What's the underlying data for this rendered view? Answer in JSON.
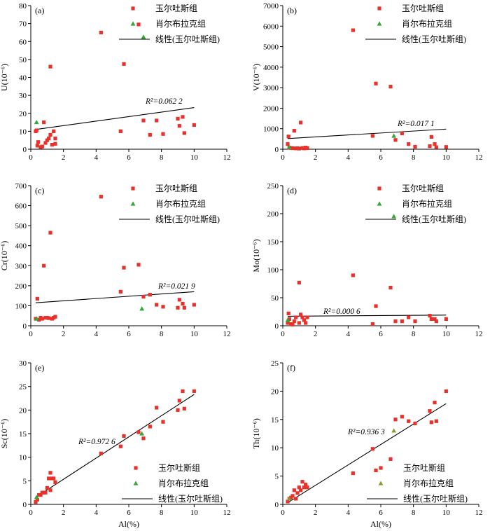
{
  "figure": {
    "legend_labels": [
      "玉尔吐斯组",
      "肖尔布拉克组",
      "线性(玉尔吐斯组)"
    ],
    "colors": {
      "series1": "#e8312a",
      "series2": "#33a833",
      "series2_f": "#8a9a2c",
      "trendline": "#000000",
      "axis": "#000000"
    }
  },
  "chart_data": [
    {
      "id": "a",
      "label": "(a)",
      "type": "scatter",
      "ylabel": "U(10⁻⁶)",
      "xlabel": "",
      "xlim": [
        0,
        12
      ],
      "ylim": [
        0,
        80
      ],
      "xticks": [
        0,
        2,
        4,
        6,
        8,
        10,
        12
      ],
      "yticks": [
        0,
        10,
        20,
        30,
        40,
        50,
        60,
        70,
        80
      ],
      "r2_text": "R²=0.062 2",
      "trendline": {
        "x": [
          0.3,
          10.0
        ],
        "y": [
          11.0,
          23.2
        ]
      },
      "series": [
        {
          "name": "玉尔吐斯组",
          "marker": "square",
          "points": [
            [
              0.3,
              10
            ],
            [
              0.35,
              10.5
            ],
            [
              0.4,
              2
            ],
            [
              0.45,
              4
            ],
            [
              0.6,
              1.2
            ],
            [
              0.7,
              1.5
            ],
            [
              0.8,
              15
            ],
            [
              0.9,
              3.5
            ],
            [
              1.0,
              5
            ],
            [
              1.1,
              6
            ],
            [
              1.2,
              46
            ],
            [
              1.2,
              8
            ],
            [
              1.3,
              2.5
            ],
            [
              1.4,
              10
            ],
            [
              1.5,
              3
            ],
            [
              1.5,
              6
            ],
            [
              4.3,
              65
            ],
            [
              5.5,
              10
            ],
            [
              5.7,
              47.5
            ],
            [
              6.6,
              69.5
            ],
            [
              6.9,
              16
            ],
            [
              7.3,
              8
            ],
            [
              7.7,
              16
            ],
            [
              8.1,
              8.5
            ],
            [
              9.0,
              17
            ],
            [
              9.1,
              13
            ],
            [
              9.3,
              18
            ],
            [
              9.4,
              9
            ],
            [
              10.0,
              13.5
            ]
          ]
        },
        {
          "name": "肖尔布拉克组",
          "marker": "triangle",
          "points": [
            [
              0.35,
              15
            ],
            [
              6.9,
              62.5
            ]
          ]
        }
      ]
    },
    {
      "id": "b",
      "label": "(b)",
      "type": "scatter",
      "ylabel": "V(10⁻⁶)",
      "xlabel": "",
      "xlim": [
        0,
        12
      ],
      "ylim": [
        0,
        7000
      ],
      "xticks": [
        0,
        2,
        4,
        6,
        8,
        10,
        12
      ],
      "yticks": [
        0,
        1000,
        2000,
        3000,
        4000,
        5000,
        6000,
        7000
      ],
      "r2_text": "R²=0.017 1",
      "trendline": {
        "x": [
          0.3,
          10.0
        ],
        "y": [
          520,
          980
        ]
      },
      "series": [
        {
          "name": "玉尔吐斯组",
          "marker": "square",
          "points": [
            [
              0.3,
              250
            ],
            [
              0.35,
              620
            ],
            [
              0.4,
              80
            ],
            [
              0.5,
              60
            ],
            [
              0.6,
              50
            ],
            [
              0.7,
              900
            ],
            [
              0.8,
              40
            ],
            [
              0.9,
              50
            ],
            [
              1.0,
              30
            ],
            [
              1.1,
              1300
            ],
            [
              1.2,
              60
            ],
            [
              1.3,
              40
            ],
            [
              1.4,
              80
            ],
            [
              1.5,
              50
            ],
            [
              4.3,
              5800
            ],
            [
              5.5,
              650
            ],
            [
              5.7,
              3200
            ],
            [
              6.6,
              3050
            ],
            [
              6.9,
              450
            ],
            [
              7.3,
              770
            ],
            [
              7.7,
              250
            ],
            [
              8.1,
              120
            ],
            [
              9.0,
              150
            ],
            [
              9.1,
              600
            ],
            [
              9.3,
              250
            ],
            [
              9.4,
              100
            ],
            [
              10.0,
              110
            ]
          ]
        },
        {
          "name": "肖尔布拉克组",
          "marker": "triangle",
          "points": [
            [
              0.4,
              100
            ],
            [
              6.8,
              650
            ]
          ]
        }
      ]
    },
    {
      "id": "c",
      "label": "(c)",
      "type": "scatter",
      "ylabel": "Cr(10⁻⁶)",
      "xlabel": "",
      "xlim": [
        0,
        12
      ],
      "ylim": [
        0,
        700
      ],
      "xticks": [
        0,
        2,
        4,
        6,
        8,
        10,
        12
      ],
      "yticks": [
        0,
        100,
        200,
        300,
        400,
        500,
        600,
        700
      ],
      "r2_text": "R²=0.021 9",
      "trendline": {
        "x": [
          0.3,
          10.0
        ],
        "y": [
          115,
          170
        ]
      },
      "series": [
        {
          "name": "玉尔吐斯组",
          "marker": "square",
          "points": [
            [
              0.3,
              35
            ],
            [
              0.4,
              135
            ],
            [
              0.5,
              30
            ],
            [
              0.6,
              40
            ],
            [
              0.7,
              35
            ],
            [
              0.8,
              300
            ],
            [
              0.9,
              40
            ],
            [
              1.0,
              40
            ],
            [
              1.1,
              38
            ],
            [
              1.2,
              465
            ],
            [
              1.3,
              35
            ],
            [
              1.4,
              40
            ],
            [
              1.5,
              45
            ],
            [
              4.3,
              645
            ],
            [
              5.5,
              170
            ],
            [
              5.7,
              290
            ],
            [
              6.6,
              305
            ],
            [
              6.9,
              145
            ],
            [
              7.3,
              155
            ],
            [
              7.7,
              105
            ],
            [
              8.1,
              95
            ],
            [
              9.0,
              90
            ],
            [
              9.1,
              130
            ],
            [
              9.3,
              110
            ],
            [
              9.4,
              90
            ],
            [
              10.0,
              105
            ]
          ]
        },
        {
          "name": "肖尔布拉克组",
          "marker": "triangle",
          "points": [
            [
              0.35,
              35
            ],
            [
              6.8,
              85
            ]
          ]
        }
      ]
    },
    {
      "id": "d",
      "label": "(d)",
      "type": "scatter",
      "ylabel": "Mo(10⁻⁶)",
      "xlabel": "",
      "xlim": [
        0,
        12
      ],
      "ylim": [
        0,
        250
      ],
      "xticks": [
        0,
        2,
        4,
        6,
        8,
        10,
        12
      ],
      "yticks": [
        0,
        50,
        100,
        150,
        200,
        250
      ],
      "r2_text": "R²=0.000 6",
      "trendline": {
        "x": [
          0.3,
          10.0
        ],
        "y": [
          17,
          19
        ]
      },
      "series": [
        {
          "name": "玉尔吐斯组",
          "marker": "square",
          "points": [
            [
              0.3,
              5
            ],
            [
              0.35,
              22
            ],
            [
              0.4,
              12
            ],
            [
              0.5,
              3
            ],
            [
              0.6,
              2
            ],
            [
              0.7,
              8
            ],
            [
              0.8,
              15
            ],
            [
              1.0,
              77
            ],
            [
              1.0,
              5
            ],
            [
              1.1,
              20
            ],
            [
              1.2,
              15
            ],
            [
              1.3,
              10
            ],
            [
              1.4,
              5
            ],
            [
              1.5,
              15
            ],
            [
              4.3,
              90
            ],
            [
              5.5,
              3
            ],
            [
              5.7,
              35
            ],
            [
              6.6,
              68
            ],
            [
              6.9,
              8
            ],
            [
              7.3,
              8
            ],
            [
              7.7,
              15
            ],
            [
              8.1,
              8
            ],
            [
              9.0,
              18
            ],
            [
              9.1,
              12
            ],
            [
              9.3,
              12
            ],
            [
              9.4,
              8
            ],
            [
              10.0,
              12
            ]
          ]
        },
        {
          "name": "肖尔布拉克组",
          "marker": "triangle",
          "points": [
            [
              0.3,
              10
            ],
            [
              6.8,
              195
            ]
          ]
        }
      ]
    },
    {
      "id": "e",
      "label": "(e)",
      "type": "scatter",
      "ylabel": "Sc(10⁻⁶)",
      "xlabel": "Al(%)",
      "xlim": [
        0,
        12
      ],
      "ylim": [
        0,
        30
      ],
      "xticks": [
        0,
        2,
        4,
        6,
        8,
        10,
        12
      ],
      "yticks": [
        0,
        5,
        10,
        15,
        20,
        25,
        30
      ],
      "r2_text": "R²=0.972 6",
      "trendline": {
        "x": [
          0.3,
          10.0
        ],
        "y": [
          1.5,
          23.3
        ]
      },
      "series": [
        {
          "name": "玉尔吐斯组",
          "marker": "square",
          "points": [
            [
              0.3,
              0.5
            ],
            [
              0.4,
              1
            ],
            [
              0.5,
              2
            ],
            [
              0.6,
              2
            ],
            [
              0.7,
              2.5
            ],
            [
              0.8,
              2.5
            ],
            [
              0.9,
              2.5
            ],
            [
              1.0,
              3.5
            ],
            [
              1.1,
              5.5
            ],
            [
              1.2,
              3
            ],
            [
              1.2,
              6.7
            ],
            [
              1.3,
              5.5
            ],
            [
              1.4,
              5.5
            ],
            [
              1.5,
              4.7
            ],
            [
              4.3,
              10.8
            ],
            [
              5.5,
              12.3
            ],
            [
              5.7,
              14.5
            ],
            [
              6.6,
              15.3
            ],
            [
              6.9,
              14
            ],
            [
              7.3,
              16.5
            ],
            [
              7.7,
              20.5
            ],
            [
              8.1,
              17.5
            ],
            [
              9.0,
              20
            ],
            [
              9.1,
              22
            ],
            [
              9.3,
              24
            ],
            [
              9.4,
              20.3
            ],
            [
              10.0,
              24
            ]
          ]
        },
        {
          "name": "肖尔布拉克组",
          "marker": "triangle",
          "points": [
            [
              0.35,
              1.5
            ],
            [
              6.8,
              15
            ]
          ]
        }
      ]
    },
    {
      "id": "f",
      "label": "(f)",
      "type": "scatter",
      "ylabel": "Th(10⁻⁶)",
      "xlabel": "Al(%)",
      "xlim": [
        0,
        12
      ],
      "ylim": [
        0,
        25
      ],
      "xticks": [
        0,
        2,
        4,
        6,
        8,
        10,
        12
      ],
      "yticks": [
        0,
        5,
        10,
        15,
        20,
        25
      ],
      "r2_text": "R²=0.936 3",
      "trendline": {
        "x": [
          0.3,
          10.0
        ],
        "y": [
          0.3,
          17.8
        ]
      },
      "series": [
        {
          "name": "玉尔吐斯组",
          "marker": "square",
          "points": [
            [
              0.3,
              0.5
            ],
            [
              0.4,
              1
            ],
            [
              0.5,
              1.2
            ],
            [
              0.6,
              1.5
            ],
            [
              0.7,
              2.5
            ],
            [
              0.8,
              1
            ],
            [
              0.9,
              2
            ],
            [
              1.0,
              3
            ],
            [
              1.1,
              2.5
            ],
            [
              1.2,
              4
            ],
            [
              1.3,
              3
            ],
            [
              1.4,
              3.5
            ],
            [
              1.5,
              3
            ],
            [
              4.3,
              5.5
            ],
            [
              5.5,
              9.8
            ],
            [
              5.7,
              6
            ],
            [
              6.6,
              8
            ],
            [
              6.9,
              15
            ],
            [
              7.3,
              15.5
            ],
            [
              7.7,
              14.7
            ],
            [
              8.1,
              14.3
            ],
            [
              9.0,
              16.5
            ],
            [
              9.1,
              14.5
            ],
            [
              9.3,
              18
            ],
            [
              9.4,
              14.7
            ],
            [
              10.0,
              20
            ]
          ]
        },
        {
          "name": "肖尔布拉克组",
          "marker": "triangle",
          "points": [
            [
              0.4,
              1
            ],
            [
              6.8,
              13
            ]
          ]
        }
      ]
    }
  ]
}
